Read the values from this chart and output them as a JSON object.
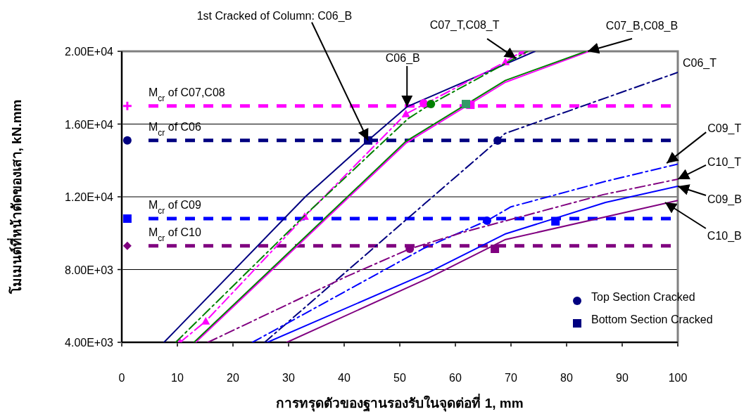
{
  "chart_data": {
    "type": "line",
    "xlabel": "การทรุดตัวของฐานรองรับในจุดต่อที่ 1, mm",
    "ylabel": "โมเมนต์ที่หน้าตัดของเสา, kN.mm",
    "xlim": [
      0,
      100
    ],
    "xticks": [
      0,
      10,
      20,
      30,
      40,
      50,
      60,
      70,
      80,
      90,
      100
    ],
    "ylim": [
      4000,
      20000
    ],
    "yticks": [
      {
        "value": 4000,
        "label": "4.00E+03"
      },
      {
        "value": 8000,
        "label": "8.00E+03"
      },
      {
        "value": 12000,
        "label": "1.20E+04"
      },
      {
        "value": 16000,
        "label": "1.60E+04"
      },
      {
        "value": 20000,
        "label": "2.00E+04"
      }
    ],
    "grid": "y",
    "legend": "bottom right",
    "marker": "none",
    "series": [
      {
        "color": "#000080",
        "line_style": "solid",
        "x": [
          7.6,
          33,
          44.3,
          51.3,
          74.3
        ],
        "values": [
          4000,
          12000,
          15100,
          16950,
          20000
        ]
      },
      {
        "color": "#000080",
        "line_style": "dashdot",
        "x": [
          25.7,
          54.4,
          67.6,
          68.9,
          100
        ],
        "values": [
          4000,
          11600,
          15090,
          15480,
          18840
        ]
      },
      {
        "type": "line",
        "color": "#ff00ff",
        "line_style": "dashdot",
        "marker": "triangle",
        "x": [
          10.5,
          15.1,
          32.9,
          51.1,
          69,
          72
        ],
        "values": [
          4000,
          5160,
          10920,
          16560,
          19420,
          20000
        ]
      },
      {
        "type": "line",
        "color": "#008000",
        "line_style": "dashdot",
        "x": [
          9.7,
          33,
          51.5,
          55.6,
          70,
          73
        ],
        "values": [
          4000,
          11000,
          16300,
          17100,
          19500,
          20000
        ]
      },
      {
        "type": "line",
        "color": "#ff00ff",
        "line_style": "solid",
        "x": [
          13.3,
          51.1,
          69,
          84
        ],
        "values": [
          4000,
          14950,
          18300,
          20000
        ]
      },
      {
        "type": "line",
        "color": "#008000",
        "line_style": "solid",
        "x": [
          13.0,
          51.1,
          69,
          83.5
        ],
        "values": [
          4000,
          15050,
          18400,
          20000
        ]
      },
      {
        "type": "line",
        "color": "#0000ff",
        "line_style": "dashdot",
        "x": [
          23.5,
          54.4,
          65.7,
          70,
          87,
          100
        ],
        "values": [
          4000,
          9180,
          10690,
          11450,
          12850,
          13800
        ]
      },
      {
        "type": "line",
        "color": "#800080",
        "line_style": "dashdot",
        "x": [
          15.5,
          40.5,
          51.8,
          61.6,
          86.6,
          100
        ],
        "values": [
          4000,
          7630,
          9140,
          10070,
          12120,
          12970
        ]
      },
      {
        "type": "line",
        "color": "#0000ff",
        "line_style": "solid",
        "x": [
          26.2,
          55.3,
          68.9,
          87,
          100
        ],
        "values": [
          4000,
          7860,
          9950,
          11690,
          12580
        ]
      },
      {
        "type": "line",
        "color": "#800080",
        "line_style": "solid",
        "x": [
          29.7,
          55.3,
          68.9,
          100
        ],
        "values": [
          4000,
          7550,
          9640,
          11800
        ]
      },
      {
        "type": "scatter",
        "name": "Top Section Cracked",
        "marker": "circle",
        "color": "#000080",
        "colors": [
          "#ff00ff",
          "#008000",
          "#000080",
          "#0000ff",
          "#800080"
        ],
        "x": [
          54.3,
          55.6,
          67.6,
          65.7,
          51.8
        ],
        "values": [
          17140,
          17100,
          15090,
          10690,
          9140
        ]
      },
      {
        "type": "scatter",
        "name": "Bottom Section Cracked",
        "marker": "square",
        "color": "#000080",
        "colors": [
          "#000080",
          "#ff00ff",
          "#339966",
          "#0000ff",
          "#800080"
        ],
        "x": [
          44.3,
          62.7,
          61.9,
          78.0,
          67.1
        ],
        "values": [
          15100,
          17060,
          17100,
          10650,
          9140
        ]
      },
      {
        "type": "scatter",
        "marker": "cross",
        "color": "#ff00ff",
        "x": [
          1
        ],
        "values": [
          17000
        ]
      },
      {
        "type": "scatter",
        "marker": "circle",
        "color": "#000080",
        "x": [
          1
        ],
        "values": [
          15100
        ]
      },
      {
        "type": "scatter",
        "marker": "square",
        "color": "#0000ff",
        "x": [
          1
        ],
        "values": [
          10800
        ]
      },
      {
        "type": "scatter",
        "marker": "diamond",
        "color": "#800080",
        "x": [
          1
        ],
        "values": [
          9300
        ]
      }
    ],
    "ref_lines": [
      {
        "axis": "y",
        "value": 17000,
        "label": "M$_{cr}$ of C07,C08",
        "color": "#ff00ff",
        "line_style": "dashed"
      },
      {
        "axis": "y",
        "value": 15100,
        "label": "M$_{cr}$ of C06",
        "color": "#000080",
        "line_style": "dashed"
      },
      {
        "axis": "y",
        "value": 10800,
        "label": "M$_{cr}$ of C09",
        "color": "#0000ff",
        "line_style": "dashed"
      },
      {
        "axis": "y",
        "value": 9300,
        "label": "M$_{cr}$ of C10",
        "color": "#800080",
        "line_style": "dashed"
      }
    ],
    "annotations": [
      {
        "text": "1st Cracked of Column: C06_B",
        "x": 44.3,
        "y": 15100
      },
      {
        "text": "C06_B",
        "x": 51.3,
        "y": 16950
      },
      {
        "text": "C07_T,C08_T",
        "x": 70.9,
        "y": 19610
      },
      {
        "text": "C07_B,C08_B",
        "x": 83.8,
        "y": 20000
      },
      {
        "text": "C06_T",
        "x": 100,
        "y": 18840
      },
      {
        "text": "C09_T",
        "x": 98,
        "y": 13850
      },
      {
        "text": "C10_T",
        "x": 100,
        "y": 12970
      },
      {
        "text": "C09_B",
        "x": 100,
        "y": 12580
      },
      {
        "text": "C10_B",
        "x": 97.7,
        "y": 11690
      }
    ]
  }
}
